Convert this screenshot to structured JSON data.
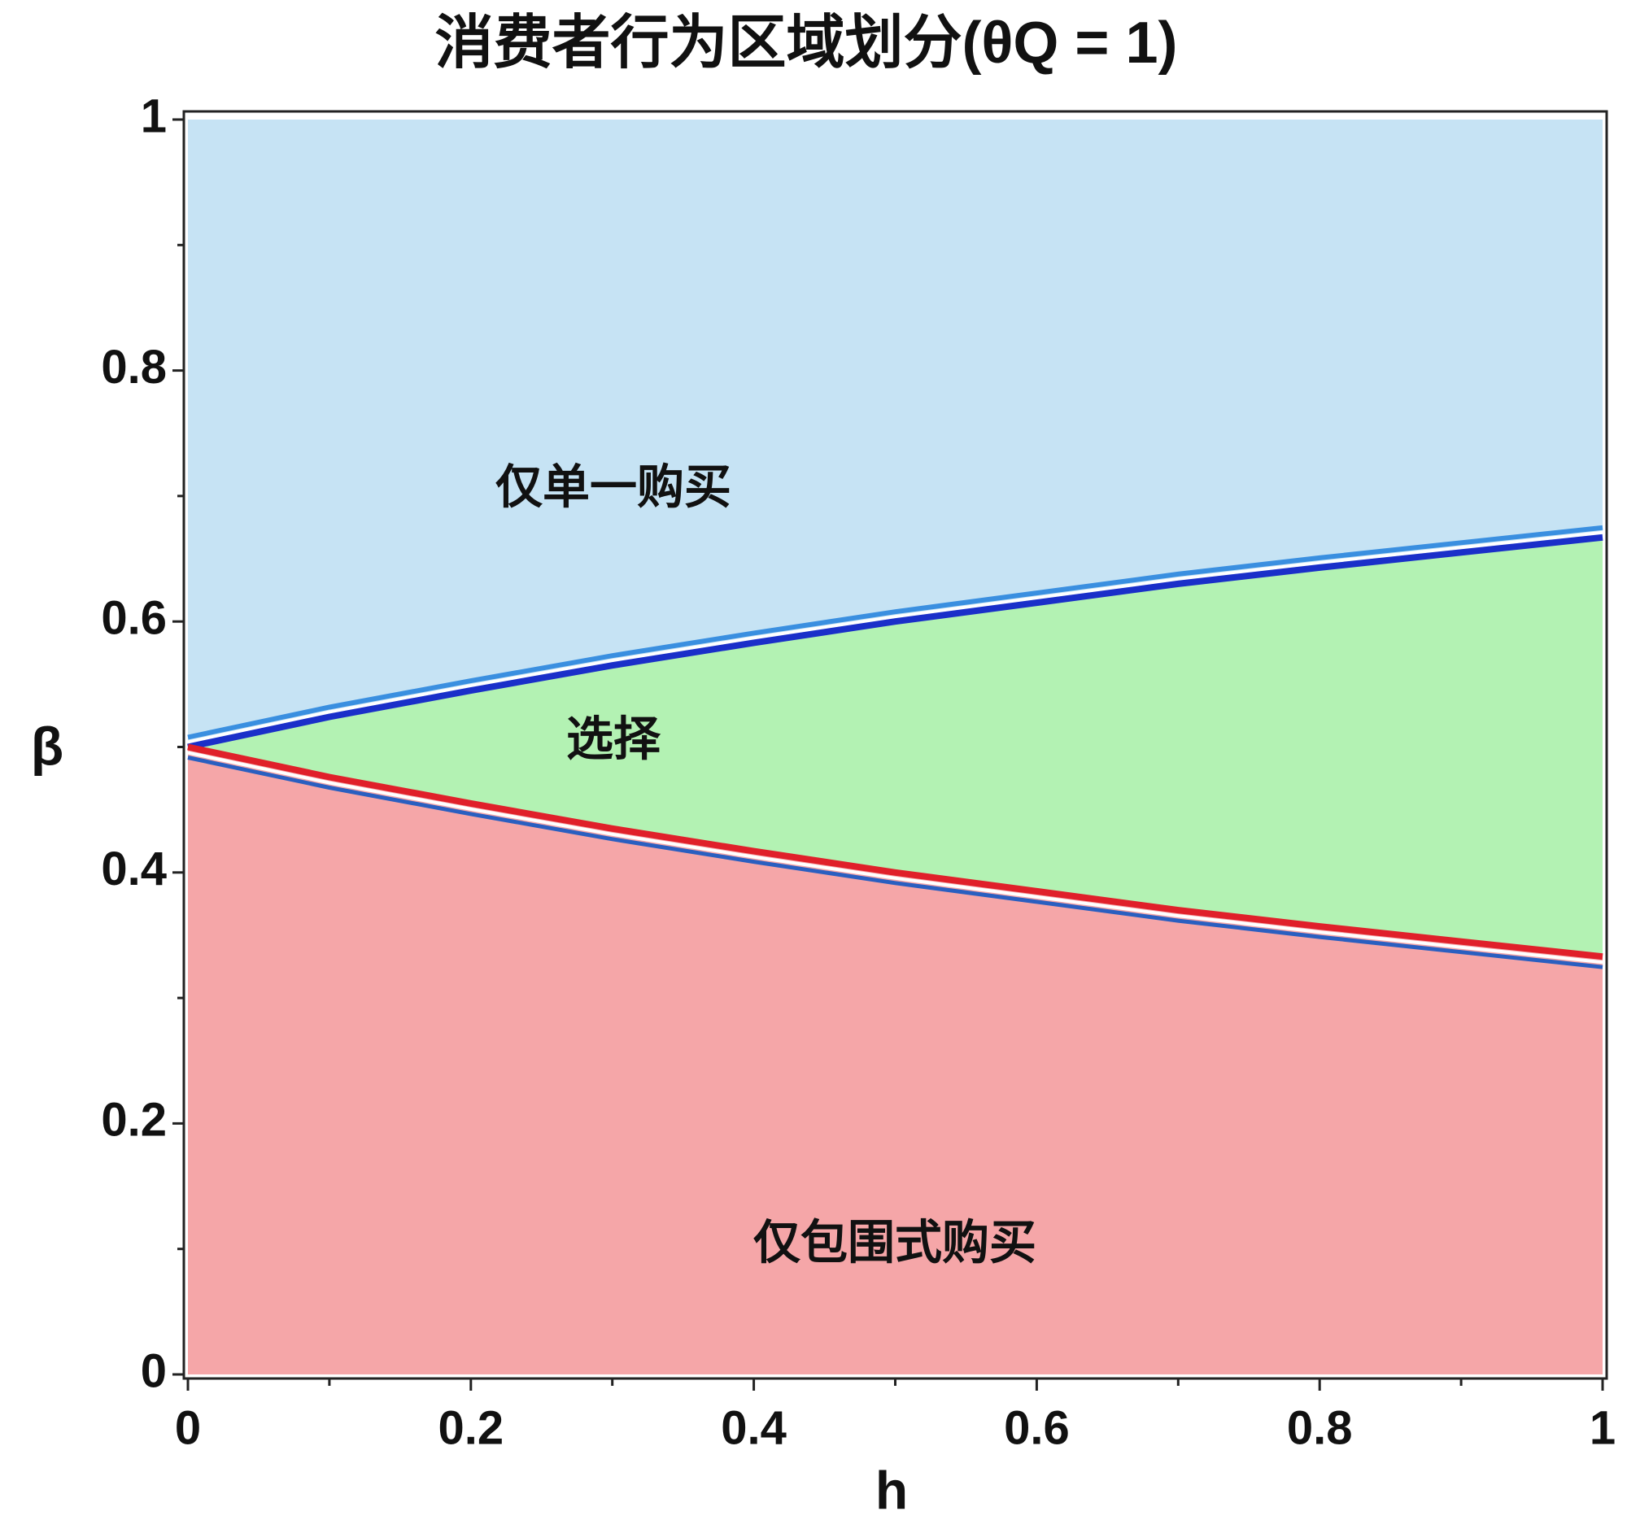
{
  "chart_data": {
    "type": "region",
    "title": "消费者行为区域划分(θQ = 1)",
    "x_label": "h",
    "y_label": "β",
    "x": [
      0,
      0.1,
      0.2,
      0.3,
      0.4,
      0.5,
      0.6,
      0.7,
      0.8,
      0.9,
      1
    ],
    "series": [
      {
        "color": "#1a2fc9",
        "values": [
          0.5,
          0.524,
          0.545,
          0.565,
          0.583,
          0.6,
          0.615,
          0.63,
          0.643,
          0.655,
          0.667
        ]
      },
      {
        "color": "#e0202a",
        "values": [
          0.5,
          0.476,
          0.455,
          0.435,
          0.417,
          0.4,
          0.385,
          0.37,
          0.357,
          0.345,
          0.333
        ]
      }
    ],
    "region_colors": [
      "#c6e3f4",
      "#b3f2b3",
      "#f5a6a8"
    ],
    "annotations": [
      "仅单一购买",
      "选择",
      "仅包围式购买"
    ],
    "xlim": [
      0,
      1
    ],
    "ylim": [
      0,
      1
    ],
    "xticks": [
      0,
      0.2,
      0.4,
      0.6,
      0.8,
      1
    ],
    "yticks": [
      0,
      0.2,
      0.4,
      0.6,
      0.8,
      1
    ],
    "xminorticks": [
      0.1,
      0.3,
      0.5,
      0.7,
      0.9
    ],
    "yminorticks": [
      0.1,
      0.3,
      0.5,
      0.7,
      0.9
    ]
  }
}
